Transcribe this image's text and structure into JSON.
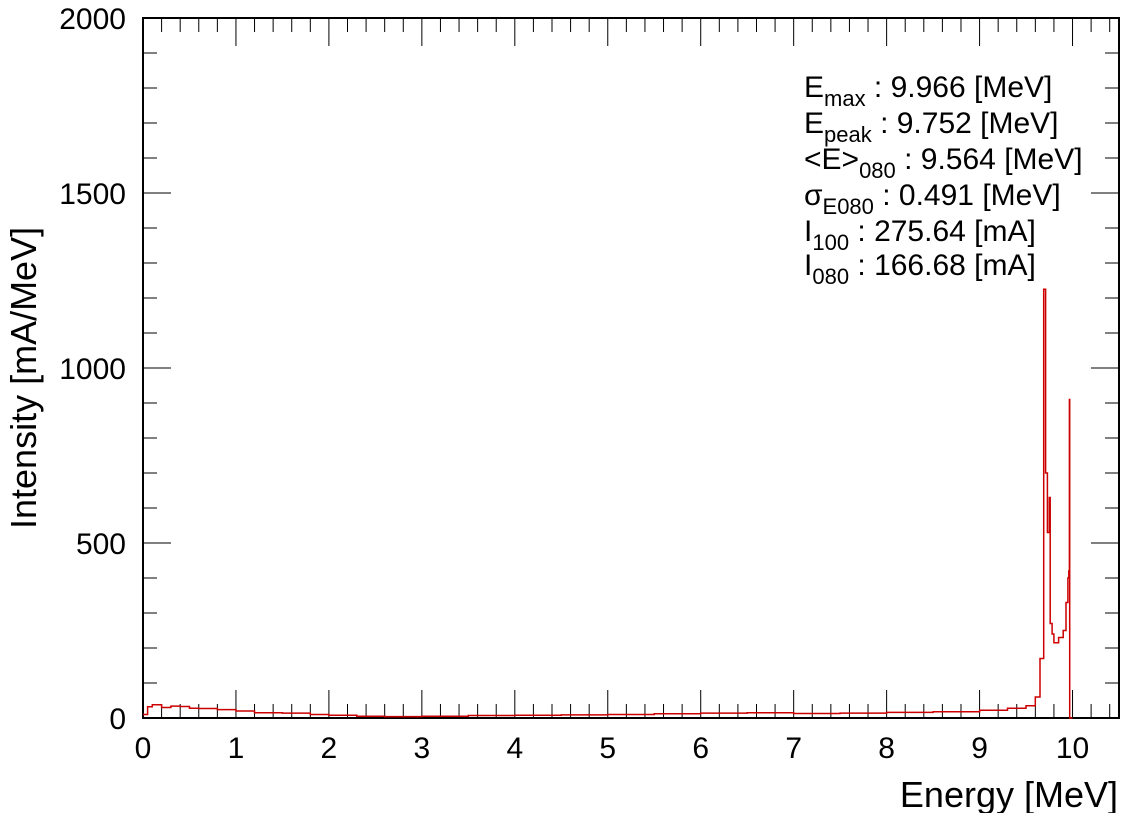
{
  "chart_data": {
    "type": "histogram",
    "title": "",
    "xlabel": "Energy [MeV]",
    "ylabel": "Intensity [mA/MeV]",
    "xlim": [
      0,
      10.5
    ],
    "ylim": [
      0,
      2000
    ],
    "x_ticks": [
      "0",
      "1",
      "2",
      "3",
      "4",
      "5",
      "6",
      "7",
      "8",
      "9",
      "10"
    ],
    "y_ticks": [
      "0",
      "500",
      "1000",
      "1500",
      "2000"
    ],
    "grid": false,
    "series_color": "#cc0000",
    "series": [
      {
        "name": "",
        "x": [
          0.0,
          0.05,
          0.1,
          0.2,
          0.3,
          0.4,
          0.5,
          0.6,
          0.8,
          1.0,
          1.2,
          1.5,
          1.8,
          2.0,
          2.3,
          2.6,
          3.0,
          3.5,
          4.0,
          4.5,
          5.0,
          5.5,
          6.0,
          6.5,
          7.0,
          7.5,
          8.0,
          8.5,
          9.0,
          9.3,
          9.5,
          9.6,
          9.65,
          9.69,
          9.71,
          9.73,
          9.75,
          9.76,
          9.78,
          9.8,
          9.85,
          9.9,
          9.93,
          9.95,
          9.96,
          9.966,
          9.97,
          9.98,
          10.0
        ],
        "y": [
          10,
          32,
          38,
          30,
          34,
          33,
          28,
          27,
          24,
          20,
          15,
          14,
          10,
          8,
          5,
          4,
          5,
          7,
          8,
          9,
          10,
          12,
          14,
          15,
          13,
          14,
          16,
          18,
          22,
          28,
          35,
          60,
          170,
          1225,
          700,
          530,
          630,
          270,
          240,
          215,
          230,
          250,
          330,
          400,
          420,
          910,
          0,
          0,
          0
        ]
      }
    ],
    "stats": {
      "emax_symbol": "E",
      "emax_sub": "max",
      "emax_text": " : 9.966 [MeV]",
      "epeak_symbol": "E",
      "epeak_sub": "peak",
      "epeak_text": " : 9.752 [MeV]",
      "emean_symbol": "<E>",
      "emean_sub": "080",
      "emean_text": " : 9.564 [MeV]",
      "sigma_symbol": "σ",
      "sigma_sub": "E080",
      "sigma_text": " : 0.491 [MeV]",
      "i100_symbol": "I",
      "i100_sub": "100",
      "i100_text": " : 275.64 [mA]",
      "i080_symbol": "I",
      "i080_sub": "080",
      "i080_text": " : 166.68 [mA]"
    }
  }
}
